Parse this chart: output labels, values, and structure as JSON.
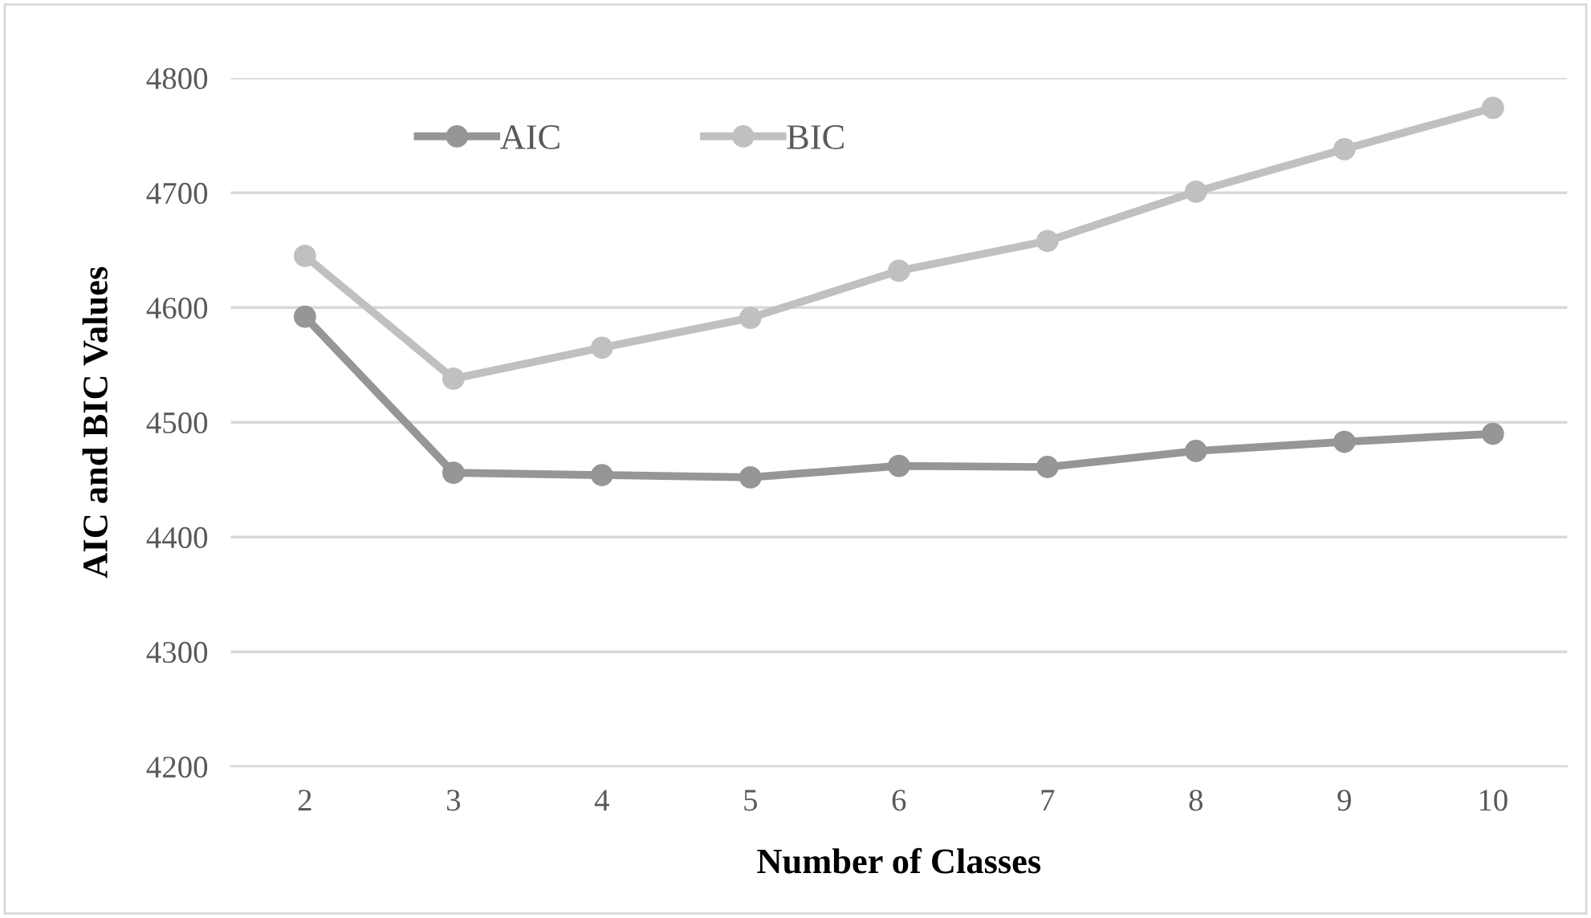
{
  "chart_data": {
    "type": "line",
    "xlabel": "Number of Classes",
    "ylabel": "AIC and BIC Values",
    "categories": [
      "2",
      "3",
      "4",
      "5",
      "6",
      "7",
      "8",
      "9",
      "10"
    ],
    "series": [
      {
        "name": "AIC",
        "color": "#969696",
        "values": [
          4592,
          4456,
          4454,
          4452,
          4462,
          4461,
          4475,
          4483,
          4490
        ]
      },
      {
        "name": "BIC",
        "color": "#c0c0c0",
        "values": [
          4645,
          4538,
          4565,
          4591,
          4632,
          4658,
          4701,
          4738,
          4774
        ]
      }
    ],
    "ylim": [
      4200,
      4800
    ],
    "yticks": [
      4200,
      4300,
      4400,
      4500,
      4600,
      4700,
      4800
    ],
    "grid": "y",
    "legend": "top",
    "marker": "circle",
    "line_style": "solid"
  }
}
